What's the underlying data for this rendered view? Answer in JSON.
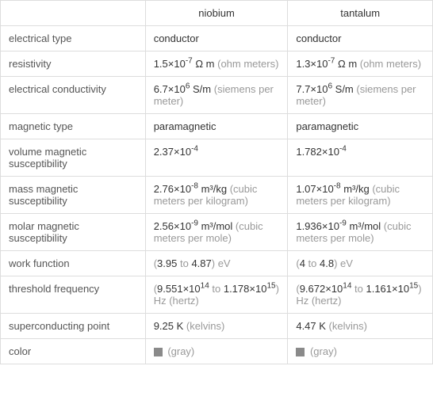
{
  "table": {
    "header": {
      "blank": "",
      "col1": "niobium",
      "col2": "tantalum"
    },
    "rows": [
      {
        "label": "electrical type",
        "niobium": {
          "value": "conductor",
          "exponent": "",
          "unit": "",
          "desc": ""
        },
        "tantalum": {
          "value": "conductor",
          "exponent": "",
          "unit": "",
          "desc": ""
        }
      },
      {
        "label": "resistivity",
        "niobium": {
          "value": "1.5×10",
          "exponent": "-7",
          "unit": " Ω m",
          "desc": " (ohm meters)"
        },
        "tantalum": {
          "value": "1.3×10",
          "exponent": "-7",
          "unit": " Ω m",
          "desc": " (ohm meters)"
        }
      },
      {
        "label": "electrical conductivity",
        "niobium": {
          "value": "6.7×10",
          "exponent": "6",
          "unit": " S/m",
          "desc": " (siemens per meter)"
        },
        "tantalum": {
          "value": "7.7×10",
          "exponent": "6",
          "unit": " S/m",
          "desc": " (siemens per meter)"
        }
      },
      {
        "label": "magnetic type",
        "niobium": {
          "value": "paramagnetic",
          "exponent": "",
          "unit": "",
          "desc": ""
        },
        "tantalum": {
          "value": "paramagnetic",
          "exponent": "",
          "unit": "",
          "desc": ""
        }
      },
      {
        "label": "volume magnetic susceptibility",
        "niobium": {
          "value": "2.37×10",
          "exponent": "-4",
          "unit": "",
          "desc": ""
        },
        "tantalum": {
          "value": "1.782×10",
          "exponent": "-4",
          "unit": "",
          "desc": ""
        }
      },
      {
        "label": "mass magnetic susceptibility",
        "niobium": {
          "value": "2.76×10",
          "exponent": "-8",
          "unit": " m³/kg",
          "desc": " (cubic meters per kilogram)"
        },
        "tantalum": {
          "value": "1.07×10",
          "exponent": "-8",
          "unit": " m³/kg",
          "desc": " (cubic meters per kilogram)"
        }
      },
      {
        "label": "molar magnetic susceptibility",
        "niobium": {
          "value": "2.56×10",
          "exponent": "-9",
          "unit": " m³/mol",
          "desc": " (cubic meters per mole)"
        },
        "tantalum": {
          "value": "1.936×10",
          "exponent": "-9",
          "unit": " m³/mol",
          "desc": " (cubic meters per mole)"
        }
      },
      {
        "label": "work function",
        "niobium": {
          "prefix": "(",
          "value": "3.95",
          "mid": " to ",
          "value2": "4.87",
          "suffix": ") eV"
        },
        "tantalum": {
          "prefix": "(",
          "value": "4",
          "mid": " to ",
          "value2": "4.8",
          "suffix": ") eV"
        }
      },
      {
        "label": "threshold frequency",
        "niobium": {
          "prefix": "(",
          "v1": "9.551×10",
          "e1": "14",
          "mid": " to ",
          "v2": "1.178×10",
          "e2": "15",
          "suffix": ") Hz",
          "desc": " (hertz)"
        },
        "tantalum": {
          "prefix": "(",
          "v1": "9.672×10",
          "e1": "14",
          "mid": " to ",
          "v2": "1.161×10",
          "e2": "15",
          "suffix": ") Hz",
          "desc": " (hertz)"
        }
      },
      {
        "label": "superconducting point",
        "niobium": {
          "value": "9.25 K",
          "desc": " (kelvins)"
        },
        "tantalum": {
          "value": "4.47 K",
          "desc": " (kelvins)"
        }
      },
      {
        "label": "color",
        "niobium": {
          "swatch": "#8a8a8a",
          "desc": " (gray)"
        },
        "tantalum": {
          "swatch": "#8a8a8a",
          "desc": " (gray)"
        }
      }
    ],
    "colors": {
      "border": "#dddddd",
      "text": "#333333",
      "label": "#555555",
      "desc": "#999999",
      "background": "#ffffff"
    }
  }
}
